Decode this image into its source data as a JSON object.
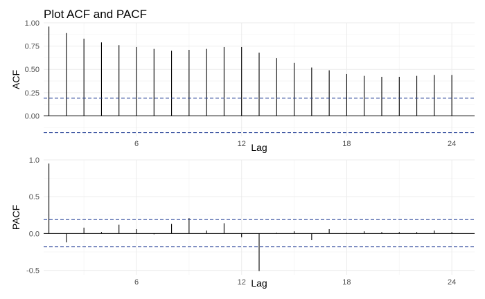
{
  "colors": {
    "bar": "#000000",
    "ci_line": "#1f3a93",
    "grid": "#ebebeb",
    "background": "#ffffff"
  },
  "chart_data": [
    {
      "type": "bar",
      "id": "acf",
      "title": "Plot ACF and PACF",
      "xlabel": "Lag",
      "ylabel": "ACF",
      "xlim": [
        0.7,
        25.3
      ],
      "ylim": [
        -0.22,
        1.0
      ],
      "xticks": [
        6,
        12,
        18,
        24
      ],
      "yticks": [
        0,
        0.25,
        0.5,
        0.75,
        1
      ],
      "ytick_labels": [
        "0.00",
        "0.25",
        "0.50",
        "0.75",
        "1.00"
      ],
      "lags": [
        1,
        2,
        3,
        4,
        5,
        6,
        7,
        8,
        9,
        10,
        11,
        12,
        13,
        14,
        15,
        16,
        17,
        18,
        19,
        20,
        21,
        22,
        23,
        24
      ],
      "values": [
        0.96,
        0.89,
        0.83,
        0.79,
        0.76,
        0.74,
        0.72,
        0.7,
        0.71,
        0.72,
        0.74,
        0.74,
        0.68,
        0.62,
        0.57,
        0.52,
        0.49,
        0.45,
        0.43,
        0.42,
        0.42,
        0.43,
        0.44,
        0.44
      ],
      "ci": [
        0.19,
        -0.18
      ],
      "grid": true
    },
    {
      "type": "bar",
      "id": "pacf",
      "title": "",
      "xlabel": "Lag",
      "ylabel": "PACF",
      "xlim": [
        0.7,
        25.3
      ],
      "ylim": [
        -0.56,
        1.0
      ],
      "xticks": [
        6,
        12,
        18,
        24
      ],
      "yticks": [
        -0.5,
        0,
        0.5,
        1
      ],
      "ytick_labels": [
        "-0.5",
        "0.0",
        "0.5",
        "1.0"
      ],
      "lags": [
        1,
        2,
        3,
        4,
        5,
        6,
        7,
        8,
        9,
        10,
        11,
        12,
        13,
        14,
        15,
        16,
        17,
        18,
        19,
        20,
        21,
        22,
        23,
        24
      ],
      "values": [
        0.95,
        -0.12,
        0.08,
        0.02,
        0.12,
        0.06,
        -0.01,
        0.13,
        0.21,
        0.04,
        0.14,
        -0.05,
        -0.51,
        0.01,
        0.03,
        -0.09,
        0.06,
        0.01,
        0.03,
        0.02,
        0.02,
        0.02,
        0.04,
        0.02
      ],
      "ci": [
        0.19,
        -0.18
      ],
      "grid": true
    }
  ]
}
